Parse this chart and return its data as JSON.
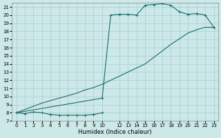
{
  "background_color": "#cce8e8",
  "grid_color": "#aacccc",
  "line_color": "#1a6b6b",
  "xlabel": "Humidex (Indice chaleur)",
  "xlim": [
    -0.5,
    23.5
  ],
  "ylim": [
    7,
    21.5
  ],
  "xticks": [
    0,
    1,
    2,
    3,
    4,
    5,
    6,
    7,
    8,
    9,
    10,
    12,
    13,
    14,
    15,
    16,
    17,
    18,
    19,
    20,
    21,
    22,
    23
  ],
  "yticks": [
    7,
    8,
    9,
    10,
    11,
    12,
    13,
    14,
    15,
    16,
    17,
    18,
    19,
    20,
    21
  ],
  "curve1_x": [
    0,
    1,
    2,
    3,
    4,
    5,
    6,
    7,
    8,
    9,
    10
  ],
  "curve1_y": [
    8.0,
    7.9,
    8.1,
    8.0,
    7.8,
    7.7,
    7.7,
    7.7,
    7.7,
    7.8,
    8.0
  ],
  "curve2_x": [
    0,
    1,
    2,
    3,
    4,
    5,
    6,
    7,
    8,
    9,
    10,
    11,
    12,
    13,
    14,
    15,
    16,
    17,
    18,
    19,
    20,
    21,
    22,
    23
  ],
  "curve2_y": [
    8.0,
    8.4,
    8.8,
    9.2,
    9.5,
    9.8,
    10.1,
    10.4,
    10.8,
    11.1,
    11.5,
    12.0,
    12.5,
    13.0,
    13.5,
    14.0,
    14.8,
    15.6,
    16.4,
    17.1,
    17.8,
    18.2,
    18.5,
    18.5
  ],
  "curve3_x": [
    0,
    10,
    11,
    12,
    13,
    14,
    15,
    16,
    17,
    18,
    19,
    20,
    21,
    22,
    23
  ],
  "curve3_y": [
    8.0,
    9.8,
    20.0,
    20.1,
    20.1,
    20.0,
    21.2,
    21.3,
    21.4,
    21.2,
    20.4,
    20.1,
    20.2,
    20.0,
    18.5
  ]
}
